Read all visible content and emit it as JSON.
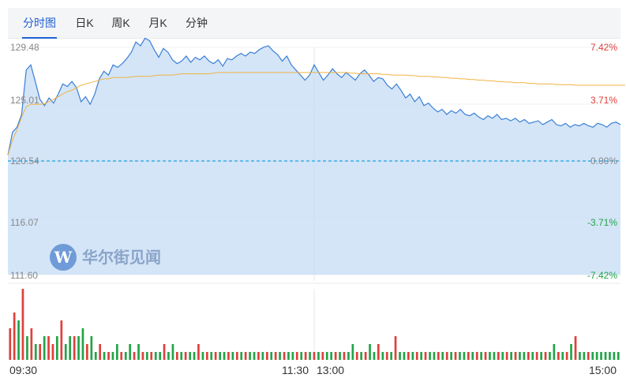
{
  "tabs": [
    {
      "label": "分时图",
      "active": true
    },
    {
      "label": "日K",
      "active": false
    },
    {
      "label": "周K",
      "active": false
    },
    {
      "label": "月K",
      "active": false
    },
    {
      "label": "分钟",
      "active": false
    }
  ],
  "watermark": {
    "text": "华尔街见闻"
  },
  "chart_data": {
    "type": "line",
    "title": "",
    "prev_close": 120.54,
    "ylim": [
      111.6,
      129.48
    ],
    "y_tick_labels": [
      "129.48",
      "125.01",
      "120.54",
      "116.07",
      "111.60"
    ],
    "pct_tick_labels": [
      "7.42%",
      "3.71%",
      "0.00%",
      "-3.71%",
      "-7.42%"
    ],
    "x_tick_labels": [
      "09:30",
      "11:30",
      "13:00",
      "15:00"
    ],
    "colors": {
      "price_line": "#3a7fd5",
      "price_fill": "#c5dcf6",
      "avg_line": "#f0b341",
      "prev_close_line": "#1ea0e0",
      "up": "#e0403c",
      "down": "#22a447"
    },
    "series": [
      {
        "values": [
          121.0,
          122.8,
          123.2,
          124.2,
          127.7,
          128.1,
          126.8,
          125.4,
          124.9,
          125.5,
          125.1,
          125.8,
          126.6,
          126.4,
          126.8,
          126.3,
          125.2,
          125.6,
          125.0,
          125.8,
          127.0,
          127.6,
          127.3,
          128.1,
          127.9,
          128.2,
          128.6,
          129.1,
          129.9,
          129.6,
          130.2,
          130.0,
          129.3,
          128.7,
          129.4,
          129.1,
          128.5,
          128.2,
          128.4,
          128.8,
          128.3,
          128.7,
          128.5,
          128.8,
          128.4,
          128.2,
          128.5,
          128.0,
          128.6,
          128.5,
          128.8,
          129.0,
          128.8,
          129.1,
          129.0,
          129.3,
          129.5,
          129.6,
          129.2,
          128.9,
          128.4,
          128.8,
          128.1,
          127.7,
          127.3,
          126.9,
          127.3,
          128.1,
          127.5,
          126.9,
          127.3,
          127.8,
          127.4,
          127.1,
          127.5,
          127.2,
          126.9,
          127.4,
          127.7,
          127.3,
          126.8,
          127.1,
          127.0,
          126.5,
          126.2,
          126.6,
          126.1,
          125.5,
          125.8,
          125.2,
          125.6,
          124.9,
          125.1,
          124.7,
          124.4,
          124.6,
          124.2,
          124.5,
          124.3,
          124.6,
          124.2,
          124.1,
          124.3,
          124.0,
          123.8,
          124.1,
          123.9,
          124.2,
          123.8,
          123.9,
          123.7,
          123.9,
          123.6,
          123.8,
          123.5,
          123.6,
          123.7,
          123.4,
          123.6,
          123.8,
          123.4,
          123.3,
          123.5,
          123.2,
          123.4,
          123.3,
          123.5,
          123.3,
          123.2,
          123.5,
          123.4,
          123.2,
          123.5,
          123.6,
          123.4
        ]
      },
      {
        "values": [
          121.0,
          122.2,
          123.0,
          124.0,
          124.8,
          125.0,
          125.0,
          125.0,
          125.05,
          125.2,
          125.4,
          125.6,
          125.8,
          126.0,
          126.1,
          126.3,
          126.5,
          126.6,
          126.7,
          126.8,
          126.9,
          127.0,
          127.0,
          127.1,
          127.1,
          127.1,
          127.1,
          127.15,
          127.2,
          127.2,
          127.2,
          127.2,
          127.25,
          127.3,
          127.3,
          127.3,
          127.3,
          127.35,
          127.4,
          127.4,
          127.4,
          127.4,
          127.4,
          127.4,
          127.4,
          127.45,
          127.5,
          127.5,
          127.5,
          127.5,
          127.5,
          127.5,
          127.5,
          127.5,
          127.5,
          127.5,
          127.5,
          127.5,
          127.5,
          127.5,
          127.5,
          127.5,
          127.5,
          127.5,
          127.5,
          127.5,
          127.5,
          127.5,
          127.5,
          127.5,
          127.5,
          127.5,
          127.5,
          127.5,
          127.5,
          127.45,
          127.45,
          127.4,
          127.4,
          127.4,
          127.4,
          127.4,
          127.35,
          127.35,
          127.3,
          127.3,
          127.3,
          127.3,
          127.25,
          127.25,
          127.2,
          127.2,
          127.2,
          127.15,
          127.15,
          127.1,
          127.1,
          127.05,
          127.05,
          127.0,
          127.0,
          126.95,
          126.95,
          126.9,
          126.9,
          126.85,
          126.85,
          126.8,
          126.8,
          126.75,
          126.75,
          126.7,
          126.7,
          126.7,
          126.65,
          126.65,
          126.6,
          126.6,
          126.6,
          126.6,
          126.55,
          126.55,
          126.55,
          126.55,
          126.5,
          126.5,
          126.5,
          126.5,
          126.5,
          126.5,
          126.5,
          126.5,
          126.5,
          126.5,
          126.5,
          126.5
        ]
      }
    ],
    "volume": [
      4,
      6,
      5,
      9,
      3,
      4,
      2,
      2,
      3,
      3,
      2,
      3,
      5,
      2,
      3,
      3,
      3,
      4,
      2,
      3,
      1,
      2,
      1,
      1,
      1,
      2,
      1,
      1,
      2,
      1,
      2,
      1,
      1,
      1,
      1,
      1,
      2,
      1,
      2,
      1,
      1,
      1,
      1,
      1,
      2,
      1,
      1,
      1,
      1,
      1,
      1,
      1,
      1,
      1,
      1,
      1,
      1,
      1,
      1,
      1,
      1,
      1,
      1,
      1,
      1,
      1,
      1,
      1,
      1,
      1,
      1,
      1,
      1,
      1,
      1,
      1,
      1,
      1,
      1,
      1,
      2,
      1,
      1,
      1,
      2,
      1,
      2,
      1,
      1,
      1,
      3,
      1,
      1,
      1,
      1,
      1,
      1,
      1,
      1,
      1,
      1,
      1,
      1,
      1,
      1,
      1,
      1,
      1,
      1,
      1,
      1,
      1,
      1,
      1,
      1,
      1,
      1,
      1,
      1,
      1,
      1,
      1,
      1,
      1,
      1,
      1,
      1,
      2,
      1,
      1,
      1,
      2,
      3,
      1,
      1,
      1,
      1,
      1,
      1,
      1,
      1,
      1,
      1
    ],
    "volume_direction": [
      "up",
      "up",
      "down",
      "up",
      "down",
      "up",
      "down",
      "up",
      "down",
      "up",
      "up",
      "down",
      "up",
      "down",
      "down",
      "up",
      "down",
      "down",
      "up",
      "down",
      "down",
      "up",
      "down",
      "up",
      "down",
      "down",
      "up",
      "down",
      "down",
      "up",
      "down",
      "up",
      "down",
      "up",
      "down",
      "down",
      "up",
      "down",
      "down",
      "up",
      "down",
      "up",
      "down",
      "down",
      "up",
      "down",
      "up",
      "down",
      "up",
      "down",
      "down",
      "up",
      "down",
      "up",
      "down",
      "up",
      "down",
      "down",
      "up",
      "down",
      "up",
      "down",
      "up",
      "down",
      "up",
      "down",
      "down",
      "up",
      "down",
      "up",
      "down",
      "up",
      "down",
      "up",
      "down",
      "down",
      "up",
      "down",
      "up",
      "down",
      "down",
      "up",
      "down",
      "up",
      "down",
      "down",
      "up",
      "down",
      "up",
      "down",
      "up",
      "down",
      "down",
      "up",
      "down",
      "up",
      "down",
      "up",
      "down",
      "down",
      "up",
      "down",
      "up",
      "down",
      "up",
      "down",
      "down",
      "up",
      "down",
      "up",
      "down",
      "up",
      "down",
      "down",
      "up",
      "down",
      "up",
      "down",
      "up",
      "down",
      "down",
      "up",
      "down",
      "up",
      "down",
      "up",
      "down",
      "down",
      "up",
      "down",
      "up",
      "down",
      "up",
      "down",
      "down",
      "up",
      "down"
    ]
  }
}
